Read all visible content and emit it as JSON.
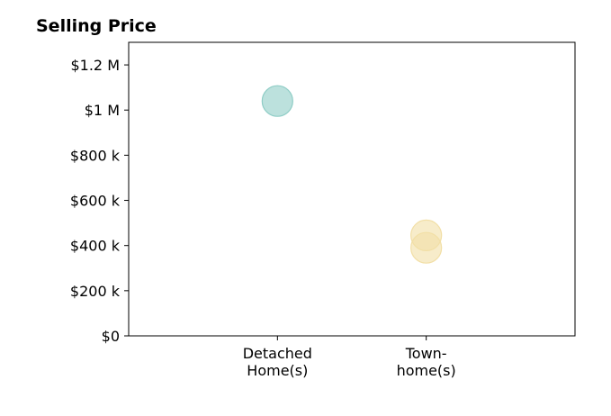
{
  "chart_data": {
    "type": "scatter",
    "title": "Selling Price",
    "xlabel": "",
    "ylabel": "",
    "categories": [
      [
        "Detached",
        "Home(s)"
      ],
      [
        "Town-",
        "home(s)"
      ]
    ],
    "xlim": [
      -1,
      2
    ],
    "ylim": [
      0,
      1300000
    ],
    "y_ticks": [
      0,
      200000,
      400000,
      600000,
      800000,
      1000000,
      1200000
    ],
    "y_tick_labels": [
      "$0",
      "$200 k",
      "$400 k",
      "$600 k",
      "$800 k",
      "$1 M",
      "$1.2 M"
    ],
    "grid": false,
    "legend": "none",
    "series": [
      {
        "category_index": 0,
        "color": "#8fcdc6",
        "points": [
          1040000
        ]
      },
      {
        "category_index": 1,
        "color": "#f2dfa6",
        "points": [
          445000,
          390000
        ]
      }
    ]
  }
}
